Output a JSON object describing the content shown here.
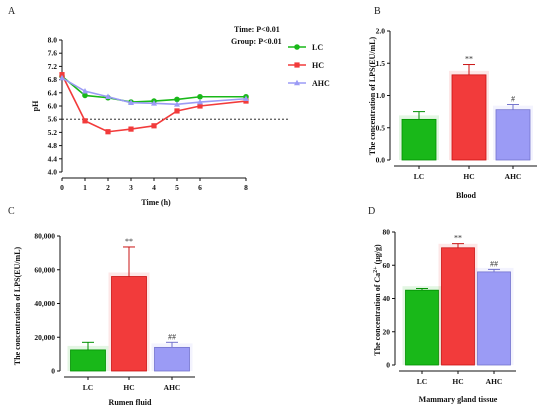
{
  "colors": {
    "LC": "#19b819",
    "HC": "#f23b3b",
    "AHC": "#9b9bf5",
    "axis": "#111111"
  },
  "chart_data": [
    {
      "panel": "A",
      "type": "line",
      "xlabel": "Time (h)",
      "ylabel": "pH",
      "x": [
        0,
        1,
        2,
        3,
        4,
        5,
        6,
        8
      ],
      "xlim": [
        0,
        8
      ],
      "ylim": [
        4.0,
        8.0
      ],
      "yticks": [
        "4.0",
        "4.4",
        "4.8",
        "5.2",
        "5.6",
        "6.0",
        "6.4",
        "6.8",
        "7.2",
        "7.6",
        "8.0"
      ],
      "reference_line": 5.6,
      "stats": [
        "Time: P<0.01",
        "Group: P<0.01"
      ],
      "legend_position": "top-right",
      "series": [
        {
          "name": "LC",
          "values": [
            6.9,
            6.32,
            6.25,
            6.12,
            6.15,
            6.2,
            6.28,
            6.28
          ],
          "marker": "circle"
        },
        {
          "name": "HC",
          "values": [
            6.95,
            5.55,
            5.22,
            5.3,
            5.4,
            5.85,
            6.0,
            6.15
          ],
          "marker": "square"
        },
        {
          "name": "AHC",
          "values": [
            6.85,
            6.45,
            6.28,
            6.1,
            6.08,
            6.05,
            6.12,
            6.22
          ],
          "marker": "triangle"
        }
      ]
    },
    {
      "panel": "B",
      "type": "bar",
      "xlabel": "Blood",
      "ylabel": "The concentration of LPS(EU/mL)",
      "categories": [
        "LC",
        "HC",
        "AHC"
      ],
      "values": [
        0.63,
        1.32,
        0.78
      ],
      "errors": [
        0.12,
        0.16,
        0.08
      ],
      "annotations": [
        "",
        "**",
        "#"
      ],
      "ylim": [
        0,
        2.0
      ],
      "yticks": [
        "0.0",
        "0.5",
        "1.0",
        "1.5",
        "2.0"
      ]
    },
    {
      "panel": "C",
      "type": "bar",
      "xlabel": "Rumen fluid",
      "ylabel": "The concentration of LPS(EU/mL)",
      "categories": [
        "LC",
        "HC",
        "AHC"
      ],
      "values": [
        12500,
        56000,
        14000
      ],
      "errors": [
        4500,
        17500,
        3000
      ],
      "annotations": [
        "",
        "**",
        "##"
      ],
      "ylim": [
        0,
        80000
      ],
      "yticks": [
        "0",
        "20,000",
        "40,000",
        "60,000",
        "80,000"
      ]
    },
    {
      "panel": "D",
      "type": "bar",
      "xlabel": "Mammary gland tissue",
      "ylabel_prefix": "The concentration of Ca",
      "ylabel_sup": "2+",
      "ylabel_suffix": " (μg/g)",
      "categories": [
        "LC",
        "HC",
        "AHC"
      ],
      "values": [
        45,
        70.5,
        56
      ],
      "errors": [
        1,
        2.5,
        1.5
      ],
      "annotations": [
        "",
        "**",
        "##"
      ],
      "ylim": [
        0,
        80
      ],
      "yticks": [
        "0",
        "20",
        "40",
        "60",
        "80"
      ]
    }
  ]
}
